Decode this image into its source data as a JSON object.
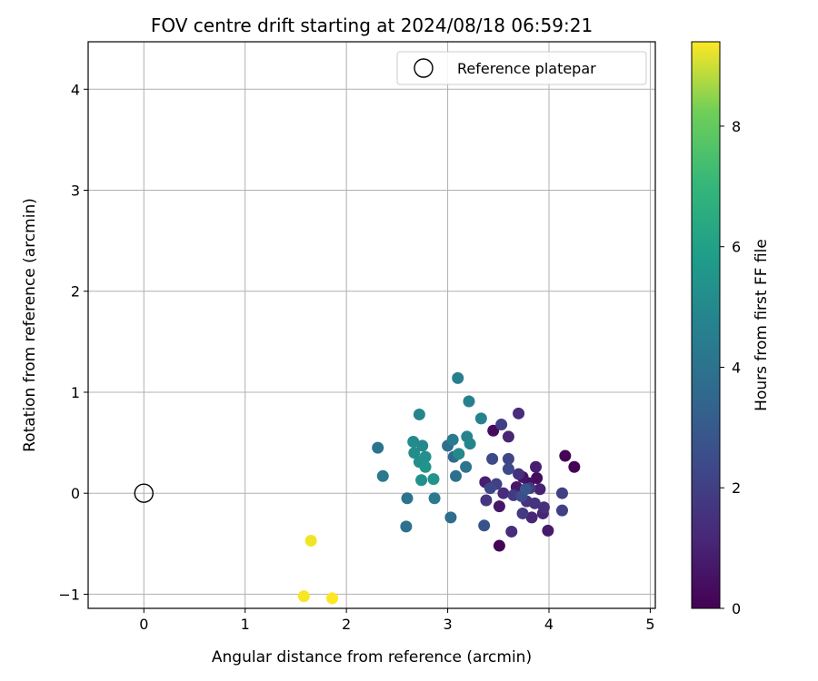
{
  "chart_data": {
    "type": "scatter",
    "title": "FOV centre drift starting at 2024/08/18 06:59:21",
    "xlabel": "Angular distance from reference (arcmin)",
    "ylabel": "Rotation from reference (arcmin)",
    "xlim": [
      -0.55,
      5.05
    ],
    "ylim": [
      -1.14,
      4.47
    ],
    "xticks": [
      0,
      1,
      2,
      3,
      4,
      5
    ],
    "yticks": [
      -1,
      0,
      1,
      2,
      3,
      4
    ],
    "grid": true,
    "legend": {
      "position": "top-right",
      "entries": [
        "Reference platepar"
      ]
    },
    "reference_point": {
      "x": 0,
      "y": 0,
      "label": "Reference platepar"
    },
    "colorbar": {
      "label": "Hours from first FF file",
      "range": [
        0,
        9.4
      ],
      "ticks": [
        0,
        2,
        4,
        6,
        8
      ],
      "colormap": "viridis"
    },
    "points": [
      {
        "x": 4.25,
        "y": 0.26,
        "h": 0.05
      },
      {
        "x": 4.16,
        "y": 0.37,
        "h": 0.1
      },
      {
        "x": 3.51,
        "y": -0.52,
        "h": 0.1
      },
      {
        "x": 3.45,
        "y": 0.62,
        "h": 0.3
      },
      {
        "x": 3.88,
        "y": 0.15,
        "h": 0.3
      },
      {
        "x": 3.8,
        "y": 0.1,
        "h": 0.4
      },
      {
        "x": 3.74,
        "y": 0.16,
        "h": 0.5
      },
      {
        "x": 3.68,
        "y": 0.06,
        "h": 0.6
      },
      {
        "x": 3.99,
        "y": -0.37,
        "h": 0.7
      },
      {
        "x": 3.51,
        "y": -0.13,
        "h": 0.6
      },
      {
        "x": 3.37,
        "y": 0.11,
        "h": 0.8
      },
      {
        "x": 3.87,
        "y": 0.26,
        "h": 0.8
      },
      {
        "x": 3.91,
        "y": 0.04,
        "h": 0.9
      },
      {
        "x": 3.94,
        "y": -0.2,
        "h": 1.0
      },
      {
        "x": 3.83,
        "y": -0.24,
        "h": 1.0
      },
      {
        "x": 3.6,
        "y": 0.56,
        "h": 1.0
      },
      {
        "x": 3.7,
        "y": 0.79,
        "h": 1.2
      },
      {
        "x": 3.55,
        "y": 0.0,
        "h": 1.2
      },
      {
        "x": 3.63,
        "y": -0.38,
        "h": 1.2
      },
      {
        "x": 3.7,
        "y": 0.19,
        "h": 1.3
      },
      {
        "x": 3.95,
        "y": -0.14,
        "h": 1.3
      },
      {
        "x": 3.78,
        "y": -0.08,
        "h": 1.4
      },
      {
        "x": 3.86,
        "y": -0.1,
        "h": 1.4
      },
      {
        "x": 3.38,
        "y": -0.07,
        "h": 1.5
      },
      {
        "x": 3.74,
        "y": -0.2,
        "h": 1.6
      },
      {
        "x": 3.65,
        "y": -0.02,
        "h": 1.6
      },
      {
        "x": 3.81,
        "y": 0.05,
        "h": 1.6
      },
      {
        "x": 4.13,
        "y": 0.0,
        "h": 1.8
      },
      {
        "x": 4.13,
        "y": -0.17,
        "h": 1.8
      },
      {
        "x": 3.53,
        "y": 0.68,
        "h": 1.8
      },
      {
        "x": 3.48,
        "y": 0.09,
        "h": 1.8
      },
      {
        "x": 3.42,
        "y": 0.05,
        "h": 2.0
      },
      {
        "x": 3.6,
        "y": 0.34,
        "h": 2.0
      },
      {
        "x": 3.44,
        "y": 0.34,
        "h": 2.1
      },
      {
        "x": 3.6,
        "y": 0.24,
        "h": 2.1
      },
      {
        "x": 3.73,
        "y": -0.03,
        "h": 2.2
      },
      {
        "x": 3.36,
        "y": -0.32,
        "h": 2.4
      },
      {
        "x": 3.77,
        "y": 0.04,
        "h": 2.5
      },
      {
        "x": 3.06,
        "y": 0.36,
        "h": 3.2
      },
      {
        "x": 3.03,
        "y": -0.24,
        "h": 3.3
      },
      {
        "x": 3.0,
        "y": 0.47,
        "h": 3.4
      },
      {
        "x": 3.08,
        "y": 0.17,
        "h": 3.4
      },
      {
        "x": 3.18,
        "y": 0.26,
        "h": 3.6
      },
      {
        "x": 2.59,
        "y": -0.33,
        "h": 3.5
      },
      {
        "x": 2.6,
        "y": -0.05,
        "h": 3.6
      },
      {
        "x": 2.31,
        "y": 0.45,
        "h": 3.6
      },
      {
        "x": 2.36,
        "y": 0.17,
        "h": 3.8
      },
      {
        "x": 2.87,
        "y": -0.05,
        "h": 3.8
      },
      {
        "x": 3.05,
        "y": 0.53,
        "h": 3.9
      },
      {
        "x": 3.1,
        "y": 1.14,
        "h": 4.0
      },
      {
        "x": 3.21,
        "y": 0.91,
        "h": 4.1
      },
      {
        "x": 3.33,
        "y": 0.74,
        "h": 4.2
      },
      {
        "x": 3.19,
        "y": 0.56,
        "h": 4.2
      },
      {
        "x": 3.22,
        "y": 0.49,
        "h": 4.3
      },
      {
        "x": 2.72,
        "y": 0.78,
        "h": 4.3
      },
      {
        "x": 2.75,
        "y": 0.47,
        "h": 4.4
      },
      {
        "x": 3.11,
        "y": 0.39,
        "h": 4.4
      },
      {
        "x": 2.66,
        "y": 0.51,
        "h": 4.5
      },
      {
        "x": 2.67,
        "y": 0.4,
        "h": 4.6
      },
      {
        "x": 2.72,
        "y": 0.31,
        "h": 4.6
      },
      {
        "x": 2.78,
        "y": 0.36,
        "h": 4.7
      },
      {
        "x": 2.74,
        "y": 0.13,
        "h": 4.7
      },
      {
        "x": 2.78,
        "y": 0.26,
        "h": 4.8
      },
      {
        "x": 2.86,
        "y": 0.14,
        "h": 4.9
      },
      {
        "x": 1.65,
        "y": -0.47,
        "h": 9.2
      },
      {
        "x": 1.58,
        "y": -1.02,
        "h": 9.3
      },
      {
        "x": 1.86,
        "y": -1.04,
        "h": 9.4
      }
    ]
  }
}
